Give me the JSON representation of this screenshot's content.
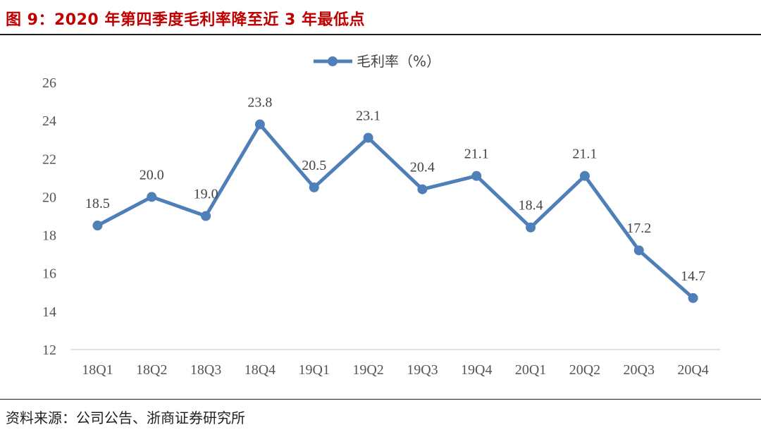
{
  "header": {
    "title": "图 9：2020 年第四季度毛利率降至近 3 年最低点"
  },
  "footer": {
    "source": "资料来源：公司公告、浙商证券研究所"
  },
  "colors": {
    "title": "#c00000",
    "series": "#4f7fb8"
  },
  "chart_data": {
    "type": "line",
    "title": "",
    "xlabel": "",
    "ylabel": "",
    "categories": [
      "18Q1",
      "18Q2",
      "18Q3",
      "18Q4",
      "19Q1",
      "19Q2",
      "19Q3",
      "19Q4",
      "20Q1",
      "20Q2",
      "20Q3",
      "20Q4"
    ],
    "series": [
      {
        "name": "毛利率（%）",
        "values": [
          18.5,
          20.0,
          19.0,
          23.8,
          20.5,
          23.1,
          20.4,
          21.1,
          18.4,
          21.1,
          17.2,
          14.7
        ],
        "labels": [
          "18.5",
          "20.0",
          "19.0",
          "23.8",
          "20.5",
          "23.1",
          "20.4",
          "21.1",
          "18.4",
          "21.1",
          "17.2",
          "14.7"
        ]
      }
    ],
    "ylim": [
      12,
      26
    ],
    "yticks": [
      12,
      14,
      16,
      18,
      20,
      22,
      24,
      26
    ],
    "legend": "top-center",
    "grid": false
  }
}
